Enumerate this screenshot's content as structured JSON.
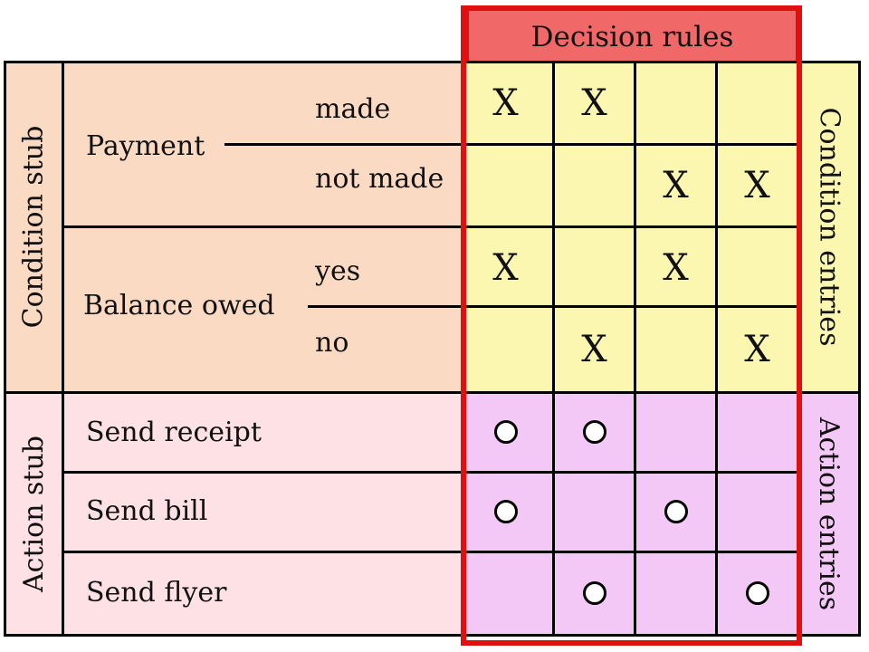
{
  "header": {
    "title": "Decision rules"
  },
  "stubs": {
    "condition_stub": "Condition stub",
    "action_stub": "Action stub",
    "condition_entries": "Condition entries",
    "action_entries": "Action entries"
  },
  "conditions": [
    {
      "name": "Payment",
      "options": [
        "made",
        "not made"
      ]
    },
    {
      "name": "Balance owed",
      "options": [
        "yes",
        "no"
      ]
    }
  ],
  "actions": [
    "Send receipt",
    "Send bill",
    "Send flyer"
  ],
  "marks": {
    "x": "X",
    "condition_entries": [
      [
        true,
        true,
        false,
        false
      ],
      [
        false,
        false,
        true,
        true
      ],
      [
        true,
        false,
        true,
        false
      ],
      [
        false,
        true,
        false,
        true
      ]
    ],
    "action_entries": [
      [
        true,
        true,
        false,
        false
      ],
      [
        true,
        false,
        true,
        false
      ],
      [
        false,
        true,
        false,
        true
      ]
    ]
  },
  "colors": {
    "condition_stub_bg": "#fbdac4",
    "action_stub_bg": "#fde1e4",
    "condition_entries_bg": "#fbf6b0",
    "action_entries_bg": "#f4c8f6",
    "header_bg": "#f06868",
    "highlight_border": "#e01010"
  }
}
